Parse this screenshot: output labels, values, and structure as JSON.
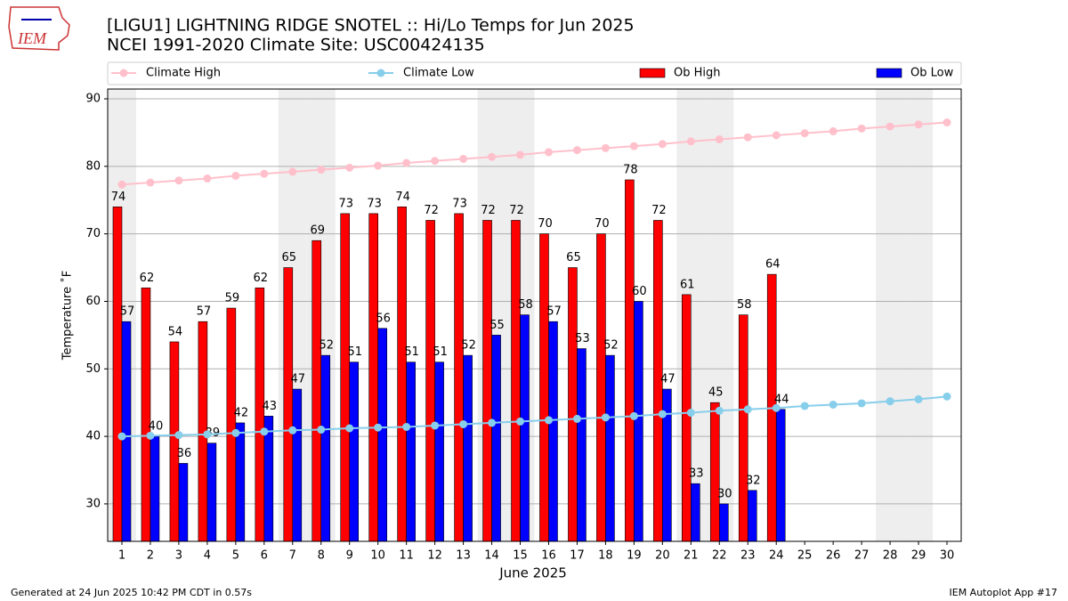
{
  "chart_data": {
    "type": "bar",
    "title": "[LIGU1] LIGHTNING RIDGE SNOTEL :: Hi/Lo Temps for Jun 2025",
    "subtitle": "NCEI 1991-2020 Climate Site: USC00424135",
    "logo_text": "IEM",
    "xlabel": "June 2025",
    "ylabel": "Temperature ˚F",
    "footer_left": "Generated at 24 Jun 2025 10:42 PM CDT in 0.57s",
    "footer_right": "IEM Autoplot App #17",
    "x": [
      1,
      2,
      3,
      4,
      5,
      6,
      7,
      8,
      9,
      10,
      11,
      12,
      13,
      14,
      15,
      16,
      17,
      18,
      19,
      20,
      21,
      22,
      23,
      24,
      25,
      26,
      27,
      28,
      29,
      30
    ],
    "xlim": [
      0.5,
      30.5
    ],
    "xticks": [
      1,
      2,
      3,
      4,
      5,
      6,
      7,
      8,
      9,
      10,
      11,
      12,
      13,
      14,
      15,
      16,
      17,
      18,
      19,
      20,
      21,
      22,
      23,
      24,
      25,
      26,
      27,
      28,
      29,
      30
    ],
    "ylim": [
      24.45,
      91.45
    ],
    "yticks": [
      30,
      40,
      50,
      60,
      70,
      80,
      90
    ],
    "grid": true,
    "shaded_days": [
      1,
      7,
      8,
      14,
      15,
      21,
      22,
      28,
      29
    ],
    "shade_color": "#eeeeee",
    "series": [
      {
        "name": "Climate High",
        "type": "line",
        "color": "#ffc0cb",
        "values": [
          77.3,
          77.6,
          77.9,
          78.2,
          78.6,
          78.9,
          79.2,
          79.5,
          79.8,
          80.1,
          80.5,
          80.8,
          81.1,
          81.4,
          81.7,
          82.1,
          82.4,
          82.7,
          83.0,
          83.3,
          83.7,
          84.0,
          84.3,
          84.6,
          84.9,
          85.2,
          85.6,
          85.9,
          86.2,
          86.5
        ]
      },
      {
        "name": "Climate Low",
        "type": "line",
        "color": "#87ceeb",
        "values": [
          40.0,
          40.1,
          40.2,
          40.3,
          40.5,
          40.7,
          40.9,
          41.0,
          41.2,
          41.3,
          41.4,
          41.6,
          41.8,
          42.0,
          42.2,
          42.4,
          42.6,
          42.8,
          43.0,
          43.3,
          43.5,
          43.8,
          44.0,
          44.2,
          44.5,
          44.7,
          44.9,
          45.2,
          45.5,
          45.9
        ]
      },
      {
        "name": "Ob High",
        "type": "bar",
        "color": "#ff0000",
        "values": [
          74,
          62,
          54,
          57,
          59,
          62,
          65,
          69,
          73,
          73,
          74,
          72,
          73,
          72,
          72,
          70,
          65,
          70,
          78,
          72,
          61,
          45,
          58,
          64,
          null,
          null,
          null,
          null,
          null,
          null
        ]
      },
      {
        "name": "Ob Low",
        "type": "bar",
        "color": "#0000ff",
        "values": [
          57,
          40,
          36,
          39,
          42,
          43,
          47,
          52,
          51,
          56,
          51,
          51,
          52,
          55,
          58,
          57,
          53,
          52,
          60,
          47,
          33,
          30,
          32,
          44,
          null,
          null,
          null,
          null,
          null,
          null
        ]
      }
    ]
  }
}
